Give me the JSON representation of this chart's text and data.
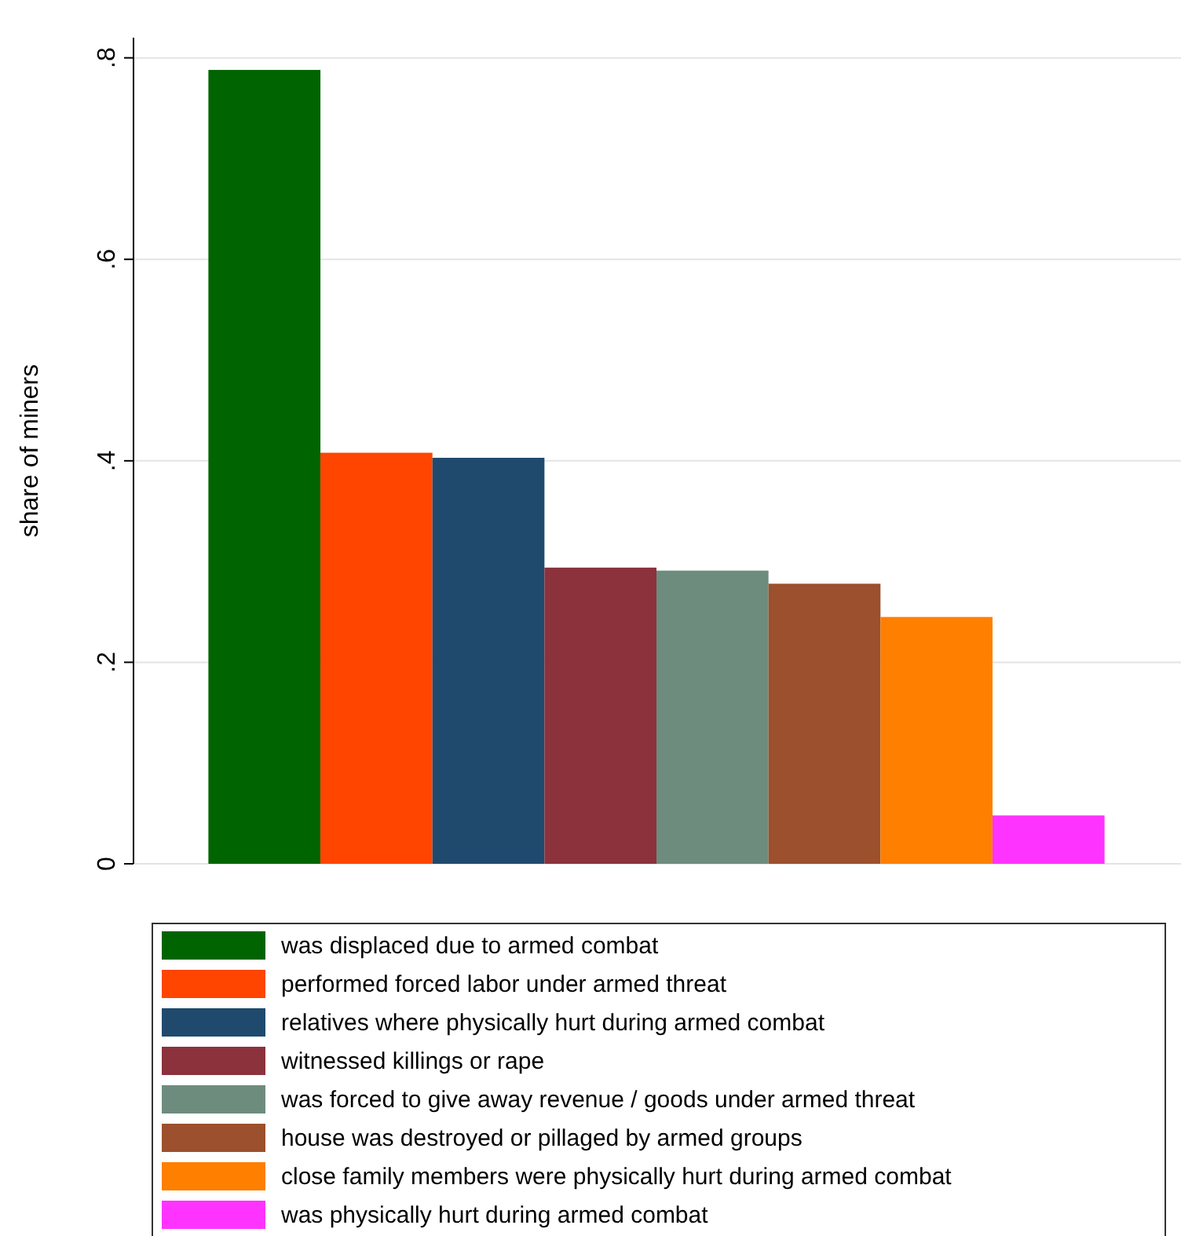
{
  "chart_data": {
    "type": "bar",
    "ylabel": "share of miners",
    "categories": [
      null
    ],
    "series": [
      {
        "name": "was displaced due to armed combat",
        "color": "#006400",
        "values": [
          0.788
        ]
      },
      {
        "name": "performed forced labor under armed threat",
        "color": "#ff4500",
        "values": [
          0.408
        ]
      },
      {
        "name": "relatives where physically hurt during armed combat",
        "color": "#1f4a6e",
        "values": [
          0.403
        ]
      },
      {
        "name": "witnessed killings or rape",
        "color": "#8b323c",
        "values": [
          0.294
        ]
      },
      {
        "name": "was forced to give away revenue / goods under armed threat",
        "color": "#6e8c7e",
        "values": [
          0.291
        ]
      },
      {
        "name": "house was destroyed or pillaged by armed groups",
        "color": "#9c502d",
        "values": [
          0.278
        ]
      },
      {
        "name": "close family members were physically hurt during armed combat",
        "color": "#ff7f00",
        "values": [
          0.245
        ]
      },
      {
        "name": "was physically hurt during armed combat",
        "color": "#ff33ff",
        "values": [
          0.048
        ]
      }
    ],
    "ylim": [
      0,
      0.82
    ],
    "yticks": [
      0,
      {
        "value": 0.2,
        "label": ".2"
      },
      {
        "value": 0.4,
        "label": ".4"
      },
      {
        "value": 0.6,
        "label": ".6"
      },
      {
        "value": 0.8,
        "label": ".8"
      }
    ],
    "grid": "y",
    "legend": "bottom"
  }
}
